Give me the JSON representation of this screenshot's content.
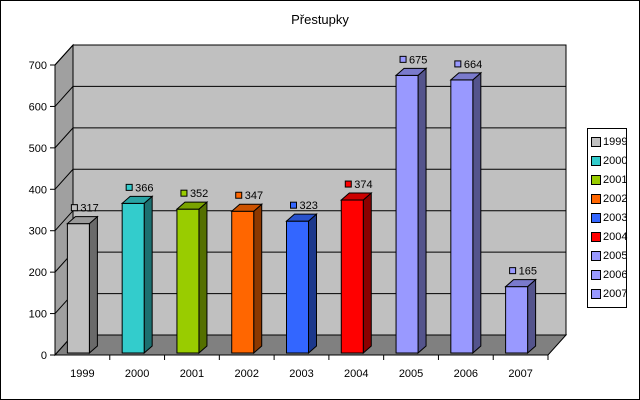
{
  "chart_data": {
    "type": "bar",
    "title": "Přestupky",
    "xlabel": "",
    "ylabel": "",
    "ylim": [
      0,
      700
    ],
    "y_ticks": [
      "0",
      "100",
      "200",
      "300",
      "400",
      "500",
      "600",
      "700"
    ],
    "categories": [
      "1999",
      "2000",
      "2001",
      "2002",
      "2003",
      "2004",
      "2005",
      "2006",
      "2007"
    ],
    "values": [
      317,
      366,
      352,
      347,
      323,
      374,
      675,
      664,
      165
    ],
    "data_labels": [
      "317",
      "366",
      "352",
      "347",
      "323",
      "374",
      "675",
      "664",
      "165"
    ],
    "colors": [
      "#c0c0c0",
      "#33cccc",
      "#99cc00",
      "#ff6600",
      "#3366ff",
      "#ff0000",
      "#9999ff",
      "#9999ff",
      "#9999ff"
    ],
    "legend": {
      "position": "right",
      "entries": [
        "1999",
        "2000",
        "2001",
        "2002",
        "2003",
        "2004",
        "2005",
        "2006",
        "2007"
      ]
    },
    "grid": true,
    "style": "3d-columns"
  }
}
